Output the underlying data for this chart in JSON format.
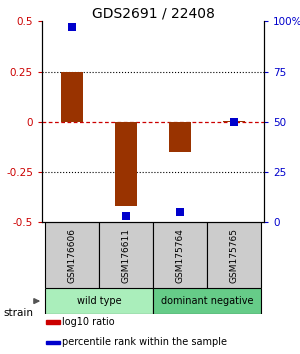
{
  "title": "GDS2691 / 22408",
  "samples": [
    "GSM176606",
    "GSM176611",
    "GSM175764",
    "GSM175765"
  ],
  "log10_ratio": [
    0.25,
    -0.42,
    -0.15,
    0.005
  ],
  "percentile_rank": [
    97,
    3,
    5,
    50
  ],
  "groups": [
    {
      "label": "wild type",
      "indices": [
        0,
        1
      ],
      "color": "#aaeebb"
    },
    {
      "label": "dominant negative",
      "indices": [
        2,
        3
      ],
      "color": "#66cc88"
    }
  ],
  "ylim_left": [
    -0.5,
    0.5
  ],
  "ylim_right": [
    0,
    100
  ],
  "left_ticks": [
    -0.5,
    -0.25,
    0,
    0.25,
    0.5
  ],
  "left_tick_labels": [
    "-0.5",
    "-0.25",
    "0",
    "0.25",
    "0.5"
  ],
  "right_ticks": [
    0,
    25,
    50,
    75,
    100
  ],
  "right_tick_labels": [
    "0",
    "25",
    "50",
    "75",
    "100%"
  ],
  "dotted_lines": [
    -0.25,
    0.25
  ],
  "red_dashed_line": 0,
  "bar_color": "#993300",
  "point_color": "#0000cc",
  "left_tick_color": "#cc0000",
  "right_tick_color": "#0000cc",
  "legend_items": [
    {
      "label": "log10 ratio",
      "color": "#cc0000"
    },
    {
      "label": "percentile rank within the sample",
      "color": "#0000cc"
    }
  ],
  "strain_label": "strain",
  "sample_box_color": "#cccccc",
  "group_border_color": "#000000",
  "bar_width": 0.4,
  "point_size": 40,
  "title_fontsize": 10
}
